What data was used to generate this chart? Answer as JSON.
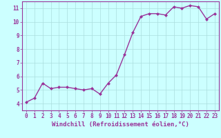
{
  "x": [
    0,
    1,
    2,
    3,
    4,
    5,
    6,
    7,
    8,
    9,
    10,
    11,
    12,
    13,
    14,
    15,
    16,
    17,
    18,
    19,
    20,
    21,
    22,
    23
  ],
  "y": [
    4.1,
    4.4,
    5.5,
    5.1,
    5.2,
    5.2,
    5.1,
    5.0,
    5.1,
    4.7,
    5.5,
    6.1,
    7.6,
    9.2,
    10.4,
    10.6,
    10.6,
    10.5,
    11.1,
    11.0,
    11.2,
    11.1,
    10.2,
    10.6
  ],
  "line_color": "#993399",
  "marker": "D",
  "marker_size": 2.0,
  "bg_color": "#ccffff",
  "grid_color": "#aadddd",
  "xlabel": "Windchill (Refroidissement éolien,°C)",
  "xlim": [
    -0.5,
    23.5
  ],
  "ylim": [
    3.5,
    11.5
  ],
  "yticks": [
    4,
    5,
    6,
    7,
    8,
    9,
    10,
    11
  ],
  "xticks": [
    0,
    1,
    2,
    3,
    4,
    5,
    6,
    7,
    8,
    9,
    10,
    11,
    12,
    13,
    14,
    15,
    16,
    17,
    18,
    19,
    20,
    21,
    22,
    23
  ],
  "tick_label_fontsize": 5.5,
  "xlabel_fontsize": 6.5,
  "linewidth": 1.0
}
